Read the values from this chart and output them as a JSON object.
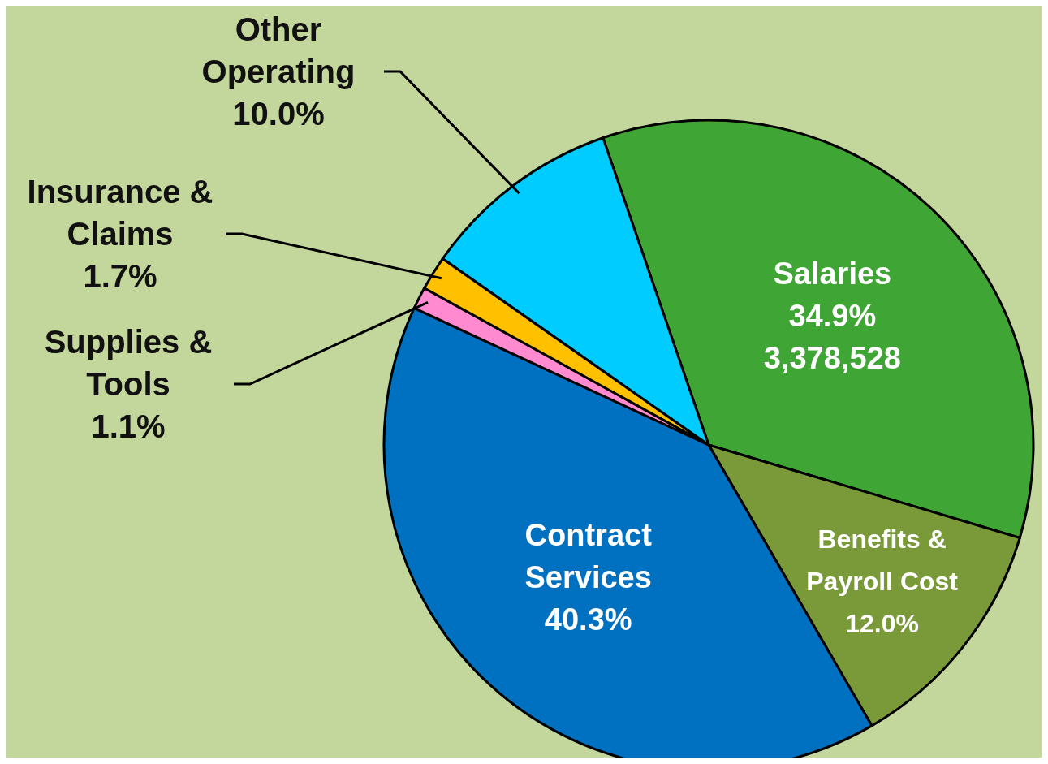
{
  "chart_data": {
    "type": "pie",
    "categories": [
      "Salaries",
      "Benefits & Payroll Cost",
      "Contract Services",
      "Supplies & Tools",
      "Insurance & Claims",
      "Other Operating"
    ],
    "values": [
      34.9,
      12.0,
      40.3,
      1.1,
      1.7,
      10.0
    ],
    "colors": [
      "#3fa535",
      "#7a9a3a",
      "#0070c0",
      "#ff8ad0",
      "#ffc000",
      "#00ccff"
    ],
    "value_labels": [
      "34.9%\n3,378,528",
      "12.0%",
      "40.3%",
      "1.1%",
      "1.7%",
      "10.0%"
    ],
    "legend": false
  }
}
